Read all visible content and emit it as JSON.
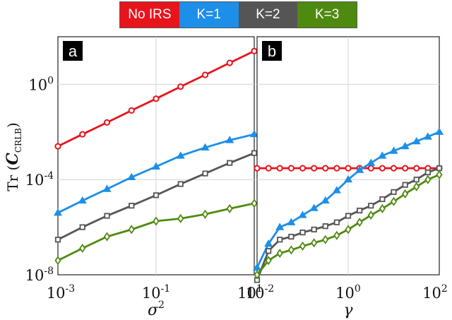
{
  "legend": {
    "items": [
      {
        "label": "No IRS",
        "color": "#e8141c"
      },
      {
        "label": "K=1",
        "color": "#1d8fe8"
      },
      {
        "label": "K=2",
        "color": "#555555"
      },
      {
        "label": "K=3",
        "color": "#4f8a10"
      }
    ]
  },
  "ylabel": {
    "prefix": "Tr",
    "main": "C",
    "sub": "CRLB"
  },
  "chart_data": [
    {
      "type": "line",
      "panel_label": "a",
      "xlabel": {
        "base": "σ",
        "sup": "2"
      },
      "xscale": "log",
      "yscale": "log",
      "xlim": [
        0.001,
        10
      ],
      "ylim": [
        1e-08,
        100
      ],
      "grid": true,
      "x_ticks": [
        {
          "base": "10",
          "exp": "-3"
        },
        {
          "base": "10",
          "exp": "-1"
        },
        {
          "base": "10",
          "exp": "1"
        }
      ],
      "y_ticks": [
        {
          "base": "10",
          "exp": "0"
        },
        {
          "base": "10",
          "exp": "-4"
        },
        {
          "base": "10",
          "exp": "-8"
        }
      ],
      "x": [
        0.001,
        0.00316,
        0.01,
        0.0316,
        0.1,
        0.316,
        1,
        3.16,
        10
      ],
      "series": [
        {
          "name": "No IRS",
          "color": "#e8141c",
          "marker": "circle",
          "values": [
            0.0025,
            0.008,
            0.025,
            0.08,
            0.25,
            0.8,
            2.5,
            8,
            25
          ]
        },
        {
          "name": "K=1",
          "color": "#1d8fe8",
          "marker": "triangle",
          "values": [
            4e-06,
            1.3e-05,
            4e-05,
            0.000125,
            0.00035,
            0.001,
            0.0022,
            0.0045,
            0.008
          ]
        },
        {
          "name": "K=2",
          "color": "#555555",
          "marker": "square",
          "values": [
            3e-07,
            1e-06,
            3e-06,
            8e-06,
            2.2e-05,
            6.5e-05,
            0.00018,
            0.0005,
            0.0013
          ]
        },
        {
          "name": "K=3",
          "color": "#4f8a10",
          "marker": "diamond",
          "values": [
            4e-08,
            1.3e-07,
            4e-07,
            8e-07,
            1.8e-06,
            2.3e-06,
            3.5e-06,
            6e-06,
            1e-05
          ]
        }
      ]
    },
    {
      "type": "line",
      "panel_label": "b",
      "xlabel": {
        "base": "γ",
        "sup": ""
      },
      "xscale": "log",
      "yscale": "log",
      "xlim": [
        0.01,
        100
      ],
      "ylim": [
        1e-08,
        100
      ],
      "grid": true,
      "x_ticks": [
        {
          "base": "10",
          "exp": "-2"
        },
        {
          "base": "10",
          "exp": "0"
        },
        {
          "base": "10",
          "exp": "2"
        }
      ],
      "y_ticks": [],
      "x": [
        0.01,
        0.0178,
        0.0316,
        0.0562,
        0.1,
        0.178,
        0.316,
        0.562,
        1,
        1.78,
        3.16,
        5.62,
        10,
        17.8,
        31.6,
        56.2,
        100
      ],
      "series": [
        {
          "name": "No IRS",
          "color": "#e8141c",
          "marker": "circle",
          "values": [
            0.0003,
            0.0003,
            0.0003,
            0.0003,
            0.0003,
            0.0003,
            0.0003,
            0.0003,
            0.0003,
            0.0003,
            0.0003,
            0.0003,
            0.0003,
            0.0003,
            0.0003,
            0.0003,
            0.0003
          ]
        },
        {
          "name": "K=1",
          "color": "#1d8fe8",
          "marker": "triangle",
          "values": [
            2e-08,
            2e-07,
            1e-06,
            1.6e-06,
            3.2e-06,
            6.3e-06,
            1.3e-05,
            3.5e-05,
            0.0001,
            0.00025,
            0.0005,
            0.001,
            0.0016,
            0.0025,
            0.004,
            0.0063,
            0.01
          ]
        },
        {
          "name": "K=2",
          "color": "#555555",
          "marker": "square",
          "values": [
            6e-09,
            1e-07,
            3e-07,
            4e-07,
            6e-07,
            8e-07,
            1.1e-06,
            1.6e-06,
            3e-06,
            5e-06,
            8e-06,
            1.5e-05,
            3e-05,
            6e-05,
            0.0001,
            0.0002,
            0.0003
          ]
        },
        {
          "name": "K=3",
          "color": "#4f8a10",
          "marker": "diamond",
          "values": [
            1e-08,
            4e-08,
            8e-08,
            1.1e-07,
            1.6e-07,
            2.2e-07,
            3e-07,
            4.5e-07,
            8e-07,
            1.6e-06,
            3.2e-06,
            6e-06,
            1.2e-05,
            2.5e-05,
            5e-05,
            0.0001,
            0.00016
          ]
        }
      ]
    }
  ]
}
